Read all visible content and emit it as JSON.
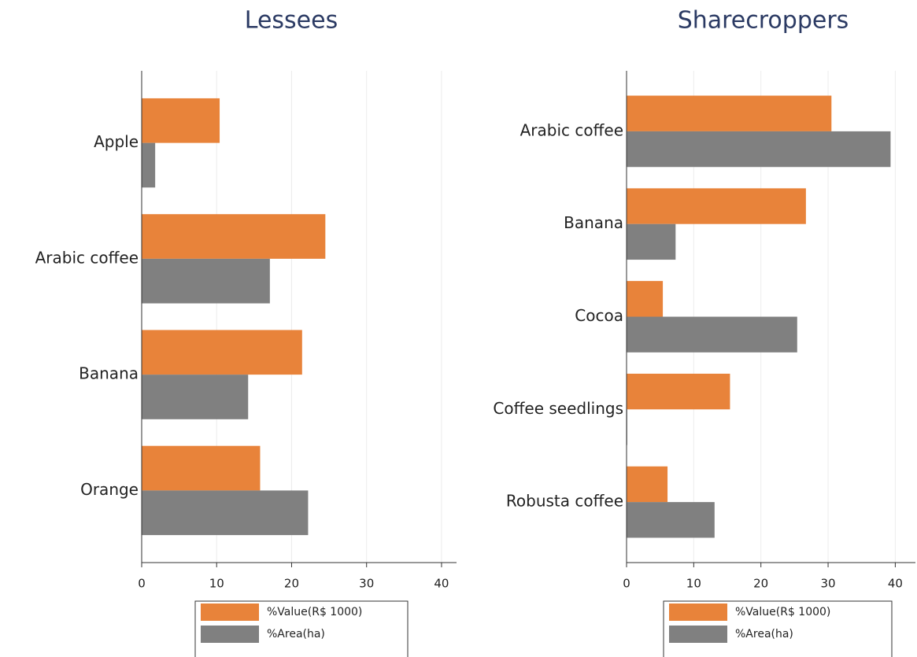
{
  "chart_data": [
    {
      "type": "bar",
      "orientation": "horizontal",
      "title": "Lessees",
      "categories": [
        "Apple",
        "Arabic coffee",
        "Banana",
        "Orange"
      ],
      "series": [
        {
          "name": "%Value(R$ 1000)",
          "color": "#e8833a",
          "values": [
            10.4,
            24.5,
            21.4,
            15.8
          ]
        },
        {
          "name": "%Area(ha)",
          "color": "#808080",
          "values": [
            1.8,
            17.1,
            14.2,
            22.2
          ]
        }
      ],
      "xlim": [
        0,
        42
      ],
      "xticks": [
        0,
        10,
        20,
        30,
        40
      ],
      "grid": true,
      "legend": "bottom"
    },
    {
      "type": "bar",
      "orientation": "horizontal",
      "title": "Sharecroppers",
      "categories": [
        "Arabic coffee",
        "Banana",
        "Cocoa",
        "Coffee seedlings",
        "Robusta coffee"
      ],
      "series": [
        {
          "name": "%Value(R$ 1000)",
          "color": "#e8833a",
          "values": [
            30.5,
            26.7,
            5.4,
            15.4,
            6.1
          ]
        },
        {
          "name": "%Area(ha)",
          "color": "#808080",
          "values": [
            39.3,
            7.3,
            25.4,
            0.1,
            13.1
          ]
        }
      ],
      "xlim": [
        0,
        43
      ],
      "xticks": [
        0,
        10,
        20,
        30,
        40
      ],
      "grid": true,
      "legend": "bottom"
    }
  ]
}
